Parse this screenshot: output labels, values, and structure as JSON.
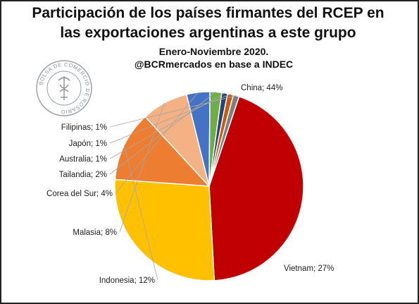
{
  "title_line1": "Participación de los países firmantes del RCEP en",
  "title_line2": "las exportaciones argentinas a este grupo",
  "subtitle_line1": "Enero-Noviembre 2020.",
  "subtitle_line2": "@BCRmercados en base a INDEC",
  "seal_text": "BOLSA DE COMERCIO DE ROSARIO",
  "chart_data": {
    "type": "pie",
    "title": "Participación de los países firmantes del RCEP en las exportaciones argentinas a este grupo",
    "subtitle": "Enero-Noviembre 2020. @BCRmercados en base a INDEC",
    "unit": "%",
    "start_angle_deg": -71.5,
    "direction": "clockwise",
    "slices": [
      {
        "label": "China",
        "value": 44,
        "display": "China; 44%",
        "color": "#C00000"
      },
      {
        "label": "Vietnam",
        "value": 27,
        "display": "Vietnam; 27%",
        "color": "#FFC000"
      },
      {
        "label": "Indonesia",
        "value": 12,
        "display": "Indonesia; 12%",
        "color": "#ED7D31"
      },
      {
        "label": "Malasia",
        "value": 8,
        "display": "Malasia; 8%",
        "color": "#F4B183"
      },
      {
        "label": "Corea del Sur",
        "value": 4,
        "display": "Corea del Sur; 4%",
        "color": "#4472C4"
      },
      {
        "label": "Tailandia",
        "value": 2,
        "display": "Tailandia; 2%",
        "color": "#70AD47"
      },
      {
        "label": "Australia",
        "value": 1,
        "display": "Australia; 1%",
        "color": "#264478"
      },
      {
        "label": "Japón",
        "value": 1,
        "display": "Japón; 1%",
        "color": "#C55A11"
      },
      {
        "label": "Filipinas",
        "value": 1,
        "display": "Filipinas; 1%",
        "color": "#7F7F7F"
      }
    ]
  }
}
